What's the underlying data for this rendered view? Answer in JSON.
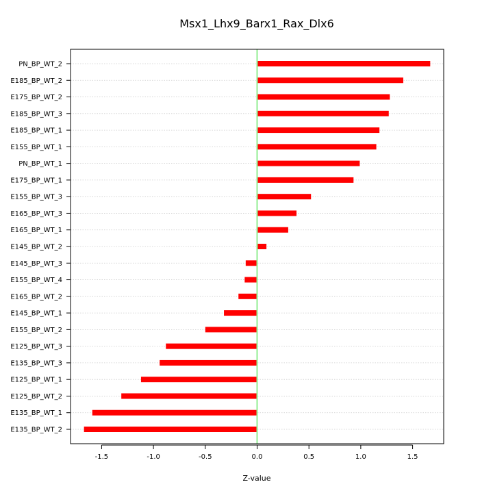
{
  "chart_data": {
    "type": "bar",
    "orientation": "horizontal",
    "title": "Msx1_Lhx9_Barx1_Rax_Dlx6",
    "xlabel": "Z-value",
    "ylabel": "",
    "xlim": [
      -1.8,
      1.8
    ],
    "xticks": [
      -1.5,
      -1.0,
      -0.5,
      0.0,
      0.5,
      1.0,
      1.5
    ],
    "xtick_labels": [
      "-1.5",
      "-1.0",
      "-0.5",
      "0.0",
      "0.5",
      "1.0",
      "1.5"
    ],
    "grid": "horizontal dotted",
    "reference_line": 0,
    "bar_color": "#ff0000",
    "reference_line_color": "#90ee90",
    "categories": [
      "PN_BP_WT_2",
      "E185_BP_WT_2",
      "E175_BP_WT_2",
      "E185_BP_WT_3",
      "E185_BP_WT_1",
      "E155_BP_WT_1",
      "PN_BP_WT_1",
      "E175_BP_WT_1",
      "E155_BP_WT_3",
      "E165_BP_WT_3",
      "E165_BP_WT_1",
      "E145_BP_WT_2",
      "E145_BP_WT_3",
      "E155_BP_WT_4",
      "E165_BP_WT_2",
      "E145_BP_WT_1",
      "E155_BP_WT_2",
      "E125_BP_WT_3",
      "E135_BP_WT_3",
      "E125_BP_WT_1",
      "E125_BP_WT_2",
      "E135_BP_WT_1",
      "E135_BP_WT_2"
    ],
    "values": [
      1.67,
      1.41,
      1.28,
      1.27,
      1.18,
      1.15,
      0.99,
      0.93,
      0.52,
      0.38,
      0.3,
      0.09,
      -0.11,
      -0.12,
      -0.18,
      -0.32,
      -0.5,
      -0.88,
      -0.94,
      -1.12,
      -1.31,
      -1.59,
      -1.67
    ]
  }
}
